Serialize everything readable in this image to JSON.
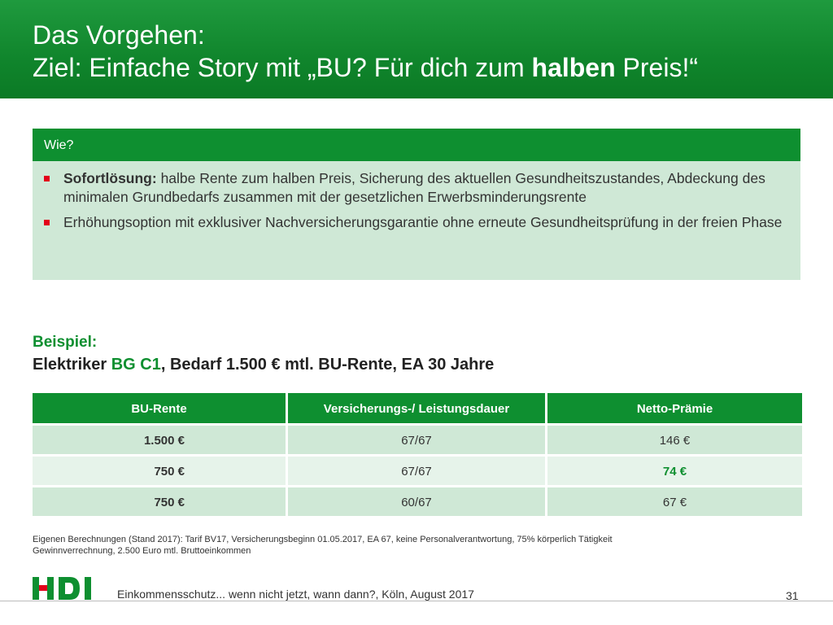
{
  "header": {
    "line1": "Das Vorgehen:",
    "line2_pre": "Ziel: Einfache Story mit „BU? Für dich zum ",
    "line2_bold": "halben",
    "line2_post": " Preis!“"
  },
  "wie": {
    "heading": "Wie?",
    "items": [
      {
        "bold": "Sofortlösung:",
        "text": " halbe Rente zum halben Preis, Sicherung des aktuellen Gesundheitszustandes, Abdeckung des minimalen Grundbedarfs zusammen mit der gesetzlichen Erwerbsminderungsrente"
      },
      {
        "bold": "",
        "text": "Erhöhungsoption mit exklusiver Nachversicherungsgarantie ohne erneute Gesundheitsprüfung in der freien Phase"
      }
    ]
  },
  "example": {
    "label": "Beispiel:",
    "desc_pre": "Elektriker ",
    "desc_green": "BG C1",
    "desc_post": ", Bedarf 1.500 € mtl. BU-Rente, EA 30 Jahre"
  },
  "table": {
    "headers": [
      "BU-Rente",
      "Versicherungs-/ Leistungsdauer",
      "Netto-Prämie"
    ],
    "rows": [
      [
        "1.500 €",
        "67/67",
        "146 €"
      ],
      [
        "750 €",
        "67/67",
        "74 €"
      ],
      [
        "750 €",
        "60/67",
        "67 €"
      ]
    ]
  },
  "footnote": {
    "line1": "Eigenen Berechnungen (Stand 2017): Tarif BV17, Versicherungsbeginn 01.05.2017, EA 67, keine Personalverantwortung, 75% körperlich Tätigkeit",
    "line2": "Gewinnverrechnung, 2.500 Euro mtl. Bruttoeinkommen"
  },
  "footer": {
    "logo_text": "HDI",
    "text": "Einkommensschutz... wenn nicht jetzt, wann dann?, Köln, August 2017",
    "page": "31"
  },
  "colors": {
    "brand_green": "#0e8f30",
    "light_green": "#cfe8d6",
    "accent_red": "#e2001a"
  }
}
